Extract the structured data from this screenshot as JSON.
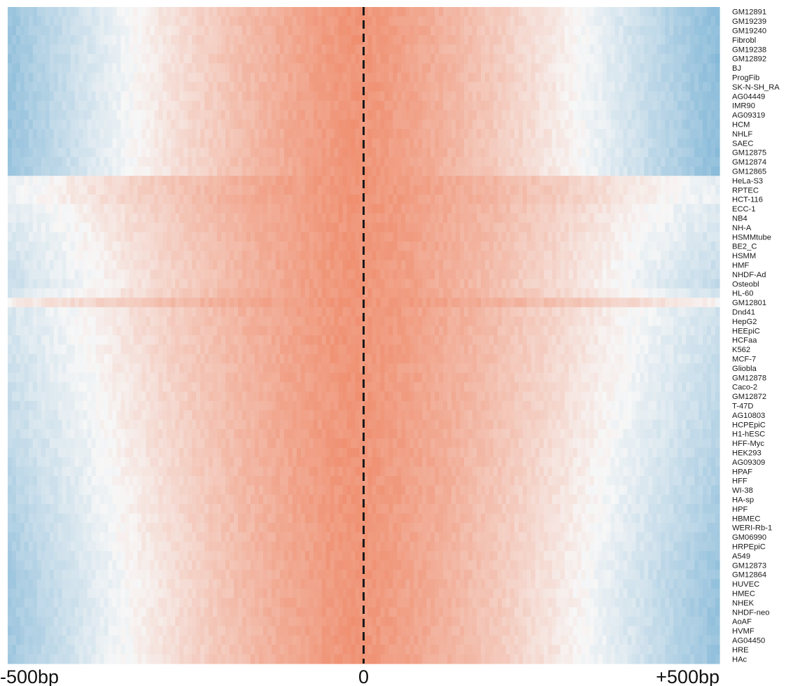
{
  "chart_data": {
    "type": "heatmap",
    "title": "",
    "xlabel": "",
    "ylabel": "",
    "x_ticks": [
      {
        "value": -500,
        "label": "-500bp"
      },
      {
        "value": 0,
        "label": "0"
      },
      {
        "value": 500,
        "label": "+500bp"
      }
    ],
    "xlim": [
      -500,
      500
    ],
    "center_line": {
      "x": 0,
      "style": "dashed",
      "color": "#1a1a1a"
    },
    "colormap": {
      "low": "#63a6cf",
      "mid": "#f7f7f7",
      "high": "#ee7a55"
    },
    "rows": [
      "GM12891",
      "GM19239",
      "GM19240",
      "Fibrobl",
      "GM19238",
      "GM12892",
      "BJ",
      "ProgFib",
      "SK-N-SH_RA",
      "AG04449",
      "IMR90",
      "AG09319",
      "HCM",
      "NHLF",
      "SAEC",
      "GM12875",
      "GM12874",
      "GM12865",
      "HeLa-S3",
      "RPTEC",
      "HCT-116",
      "ECC-1",
      "NB4",
      "NH-A",
      "HSMMtube",
      "BE2_C",
      "HSMM",
      "HMF",
      "NHDF-Ad",
      "Osteobl",
      "HL-60",
      "GM12801",
      "Dnd41",
      "HepG2",
      "HEEpiC",
      "HCFaa",
      "K562",
      "MCF-7",
      "Gliobla",
      "GM12878",
      "Caco-2",
      "GM12872",
      "T-47D",
      "AG10803",
      "HCPEpiC",
      "H1-hESC",
      "HFF-Myc",
      "HEK293",
      "AG09309",
      "HPAF",
      "HFF",
      "WI-38",
      "HA-sp",
      "HPF",
      "HBMEC",
      "WERI-Rb-1",
      "GM06990",
      "HRPEpiC",
      "A549",
      "GM12873",
      "GM12864",
      "HUVEC",
      "HMEC",
      "NHEK",
      "NHDF-neo",
      "AoAF",
      "HVMF",
      "AG04450",
      "HRE",
      "HAc"
    ]
  }
}
